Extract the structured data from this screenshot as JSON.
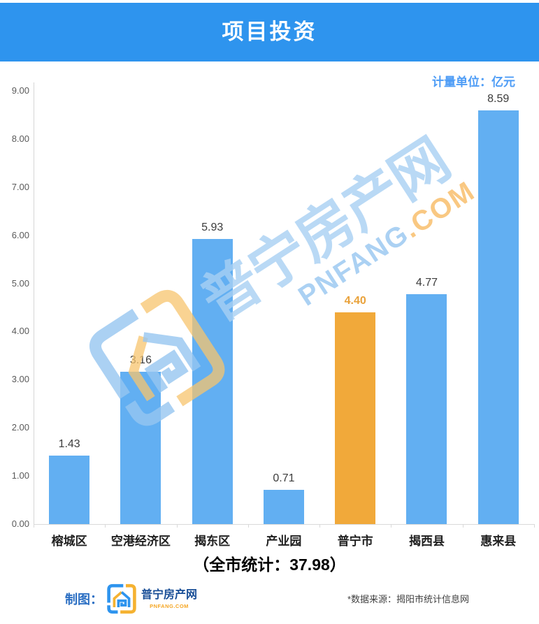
{
  "header": {
    "title": "项目投资",
    "bg_color": "#2E94EE"
  },
  "unit_label": "计量单位：亿元",
  "chart_data": {
    "type": "bar",
    "title": "项目投资",
    "unit": "亿元",
    "categories": [
      "榕城区",
      "空港经济区",
      "揭东区",
      "产业园",
      "普宁市",
      "揭西县",
      "惠来县"
    ],
    "values": [
      1.43,
      3.16,
      5.93,
      0.71,
      4.4,
      4.77,
      8.59
    ],
    "highlight_index": 4,
    "ylim": [
      0,
      9
    ],
    "ytick_step": 1,
    "grid": "off",
    "legend": "none",
    "bar_color": "#62AFF2",
    "highlight_color": "#F1A93A",
    "highlight_label_color": "#E9A23B",
    "value_label_color": "#3C3C3C",
    "axis_color": "#D9D9D9"
  },
  "total_line": "（全市统计：37.98）",
  "footer": {
    "maker_label": "制图：",
    "source": "*数据来源：揭阳市统计信息网"
  },
  "logo": {
    "name": "普宁房产网",
    "domain": "PNFANG.COM"
  },
  "watermark": {
    "text": "普宁房产网",
    "domain_blue": "PNFANG",
    "domain_orange": ".COM"
  }
}
